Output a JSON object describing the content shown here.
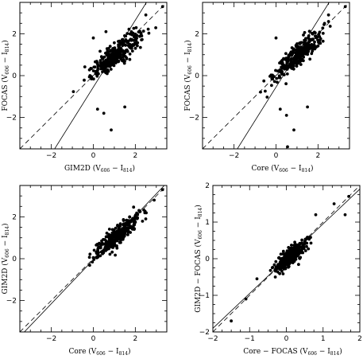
{
  "chart_data": [
    {
      "type": "scatter",
      "xlabel": "GIM2D (V606 − I814)",
      "ylabel": "FOCAS (V606 − I814)",
      "xlim": [
        -3.5,
        3.5
      ],
      "ylim": [
        -3.5,
        3.5
      ],
      "xticks": [
        -2,
        0,
        2
      ],
      "yticks": [
        -2,
        0,
        2
      ],
      "lines": [
        {
          "style": "solid",
          "slope": 1.6,
          "intercept": -0.55
        },
        {
          "style": "dashed",
          "slope": 1.0,
          "intercept": 0.0
        }
      ],
      "center": [
        1.05,
        1.0
      ],
      "spread": [
        0.55,
        0.45
      ],
      "n_points": 330,
      "outliers": [
        [
          0.85,
          -2.6
        ],
        [
          0.2,
          -1.6
        ],
        [
          0.5,
          -1.8
        ],
        [
          1.5,
          -1.5
        ],
        [
          0.6,
          2.1
        ],
        [
          3.3,
          3.3
        ],
        [
          2.5,
          2.9
        ],
        [
          0.0,
          1.8
        ]
      ]
    },
    {
      "type": "scatter",
      "xlabel": "Core (V606 − I814)",
      "ylabel": "FOCAS (V606 − I814)",
      "xlim": [
        -3.5,
        3.5
      ],
      "ylim": [
        -3.5,
        3.5
      ],
      "xticks": [
        -2,
        0,
        2
      ],
      "yticks": [
        -2,
        0,
        2
      ],
      "lines": [
        {
          "style": "solid",
          "slope": 1.6,
          "intercept": -0.55
        },
        {
          "style": "dashed",
          "slope": 1.0,
          "intercept": 0.0
        }
      ],
      "center": [
        1.05,
        1.0
      ],
      "spread": [
        0.55,
        0.45
      ],
      "n_points": 330,
      "outliers": [
        [
          0.85,
          -2.6
        ],
        [
          0.55,
          -3.4
        ],
        [
          0.2,
          -1.6
        ],
        [
          0.5,
          -1.9
        ],
        [
          1.5,
          -1.5
        ],
        [
          3.3,
          3.3
        ],
        [
          2.5,
          2.9
        ],
        [
          0.0,
          1.8
        ]
      ]
    },
    {
      "type": "scatter",
      "xlabel": "Core (V606 − I814)",
      "ylabel": "GIM2D (V606 − I814)",
      "xlim": [
        -3.5,
        3.5
      ],
      "ylim": [
        -3.5,
        3.5
      ],
      "xticks": [
        -2,
        0,
        2
      ],
      "yticks": [
        -2,
        0,
        2
      ],
      "lines": [
        {
          "style": "solid",
          "slope": 1.05,
          "intercept": -0.05
        },
        {
          "style": "dashed",
          "slope": 1.0,
          "intercept": 0.0
        }
      ],
      "center": [
        1.2,
        1.15
      ],
      "spread": [
        0.55,
        0.4
      ],
      "n_points": 300,
      "outliers": [
        [
          0.0,
          0.05
        ],
        [
          3.3,
          3.3
        ],
        [
          2.9,
          2.8
        ]
      ]
    },
    {
      "type": "scatter",
      "xlabel": "Core − FOCAS (V606 − I814)",
      "ylabel": "GIM2D − FOCAS (V606 − I814)",
      "xlim": [
        -2,
        2
      ],
      "ylim": [
        -2,
        2
      ],
      "xticks": [
        -2,
        -1,
        0,
        1,
        2
      ],
      "yticks": [
        -2,
        -1,
        0,
        1,
        2
      ],
      "lines": [
        {
          "style": "solid",
          "slope": 0.95,
          "intercept": 0.0
        },
        {
          "style": "dashed",
          "slope": 1.0,
          "intercept": 0.0
        }
      ],
      "center": [
        0.1,
        0.05
      ],
      "spread": [
        0.2,
        0.2
      ],
      "n_points": 320,
      "outliers": [
        [
          -1.5,
          -1.7
        ],
        [
          -1.1,
          -1.1
        ],
        [
          -0.8,
          -0.55
        ],
        [
          1.3,
          1.5
        ],
        [
          1.6,
          1.2
        ],
        [
          1.7,
          1.7
        ],
        [
          0.8,
          1.2
        ],
        [
          -0.3,
          -0.5
        ]
      ]
    }
  ]
}
